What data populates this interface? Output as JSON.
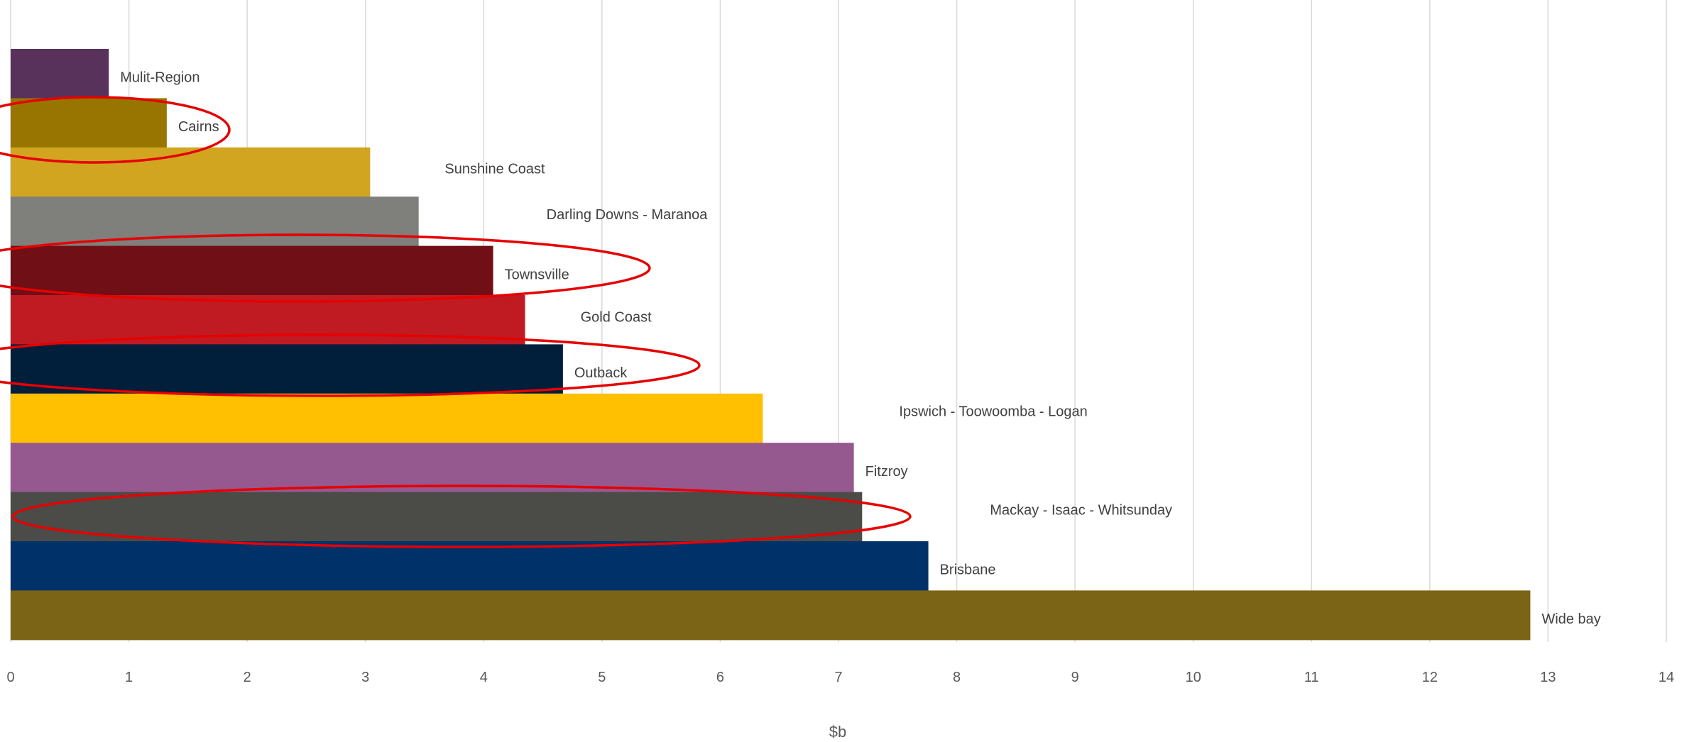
{
  "chart_data": {
    "type": "bar",
    "orientation": "horizontal",
    "xlabel": "$b",
    "ylabel": "",
    "xlim": [
      0,
      14
    ],
    "xticks": [
      "0",
      "1",
      "2",
      "3",
      "4",
      "5",
      "6",
      "7",
      "8",
      "9",
      "10",
      "11",
      "12",
      "13",
      "14"
    ],
    "grid": true,
    "legend": "none",
    "bars": [
      {
        "category": "Mulit-Region",
        "value": 0.83,
        "color": "#58325a"
      },
      {
        "category": "Cairns",
        "value": 1.32,
        "color": "#977500",
        "highlighted": true
      },
      {
        "category": "Sunshine Coast",
        "value": 3.04,
        "color": "#d1a520"
      },
      {
        "category": "Darling Downs - Maranoa",
        "value": 3.45,
        "color": "#7f7f7b"
      },
      {
        "category": "Townsville",
        "value": 4.08,
        "color": "#700f15",
        "highlighted": true
      },
      {
        "category": "Gold Coast",
        "value": 4.35,
        "color": "#c01b23"
      },
      {
        "category": "Outback",
        "value": 4.67,
        "color": "#011e3b",
        "highlighted": true
      },
      {
        "category": "Ipswich - Toowoomba - Logan",
        "value": 6.36,
        "color": "#fec000"
      },
      {
        "category": "Fitzroy",
        "value": 7.13,
        "color": "#955990"
      },
      {
        "category": "Mackay - Isaac - Whitsunday",
        "value": 7.2,
        "color": "#4b4b47",
        "highlighted": true
      },
      {
        "category": "Brisbane",
        "value": 7.76,
        "color": "#003269"
      },
      {
        "category": "Wide bay",
        "value": 12.85,
        "color": "#7b6415"
      }
    ]
  }
}
